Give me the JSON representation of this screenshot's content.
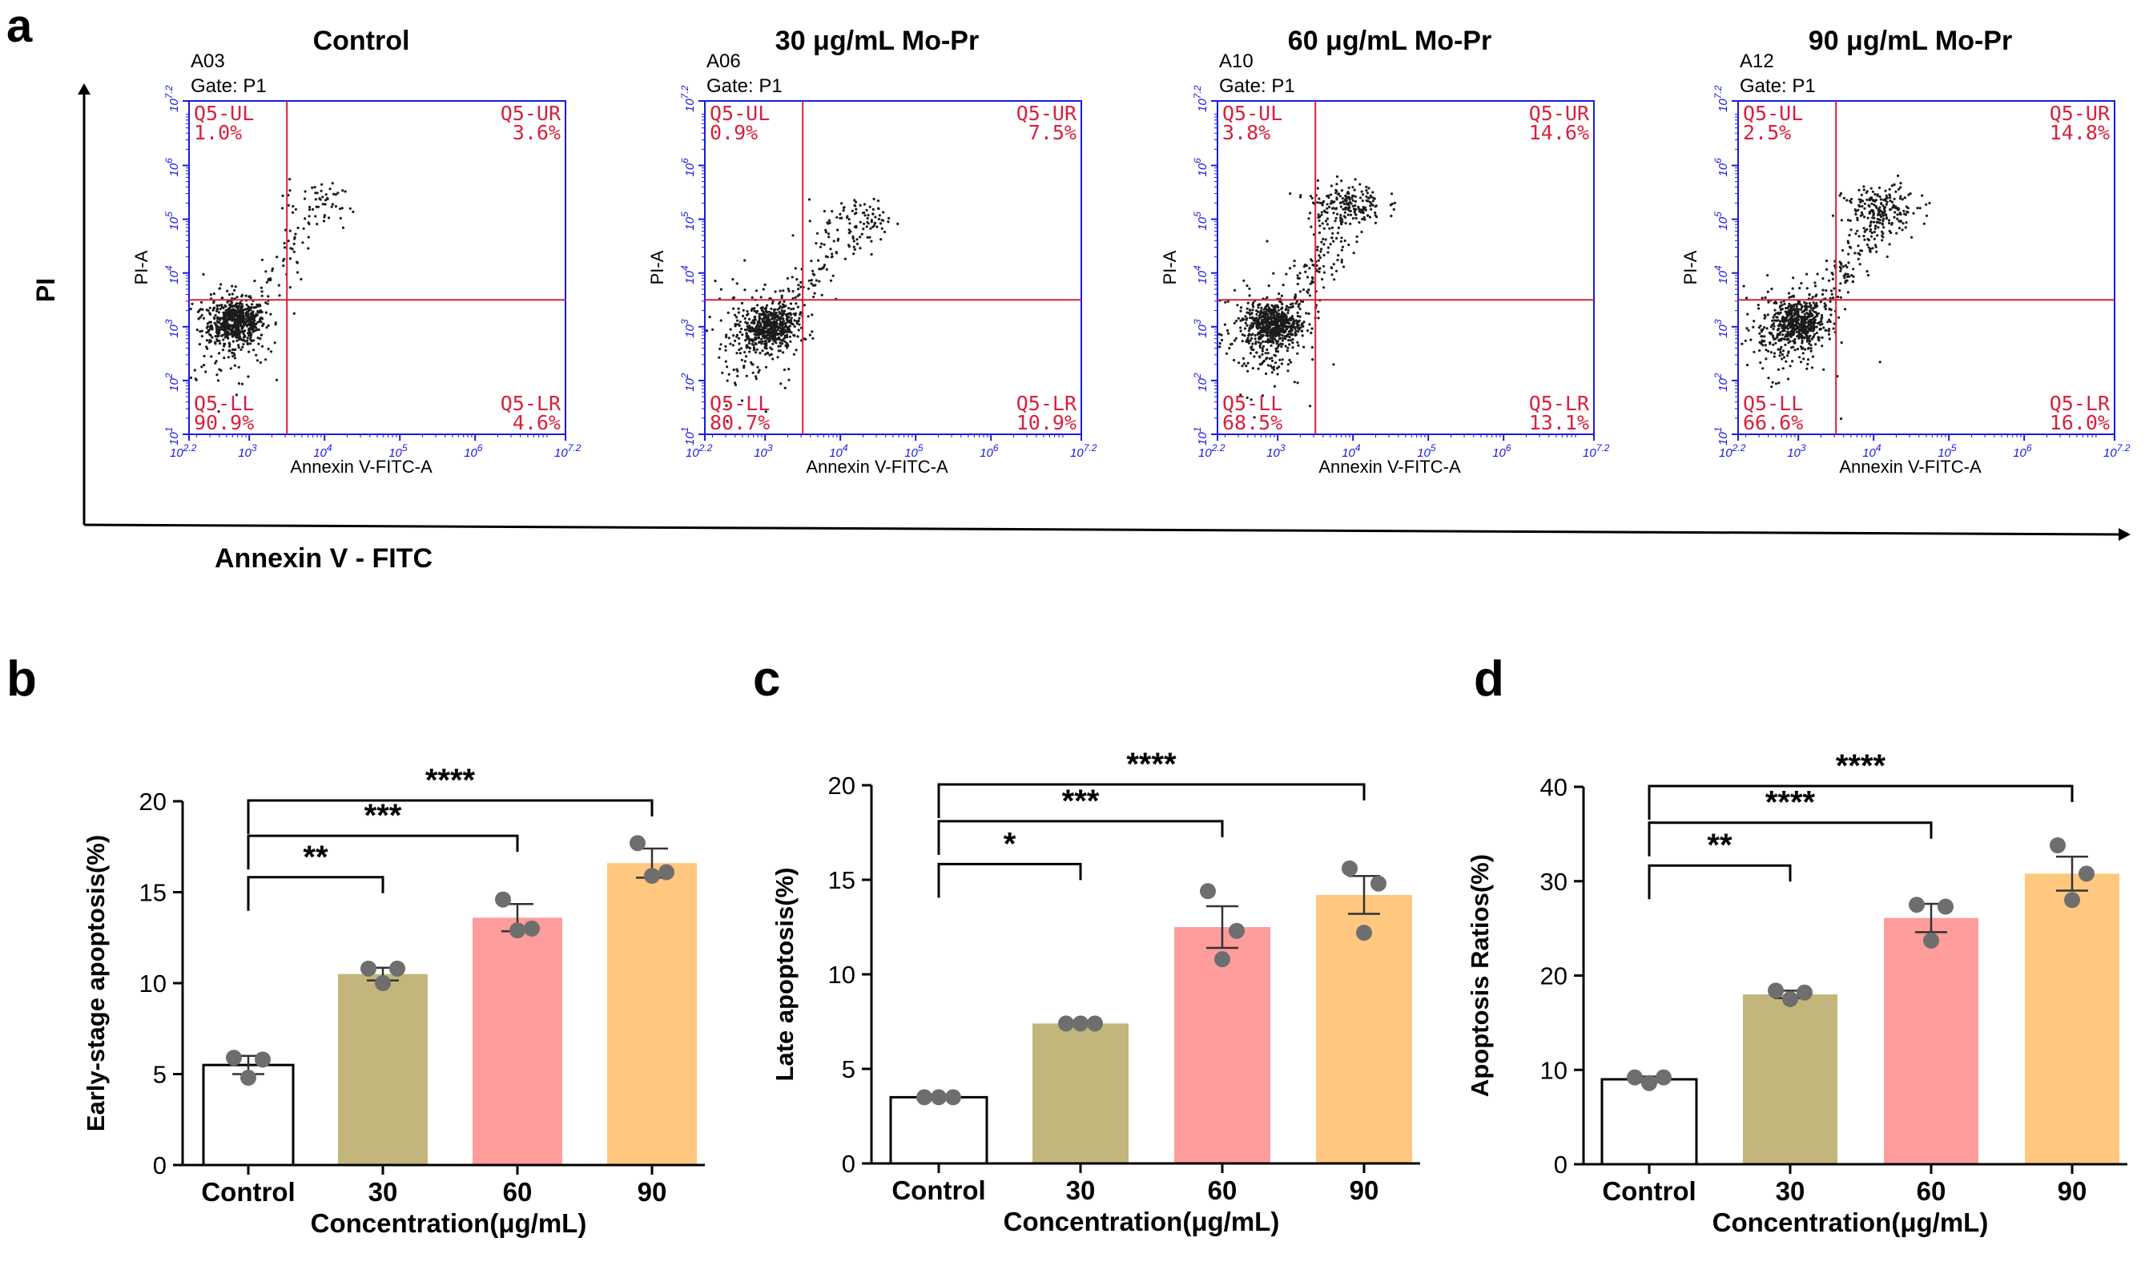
{
  "panel_labels": [
    "a",
    "b",
    "c",
    "d"
  ],
  "chart_data": [
    {
      "type": "scatter",
      "panel": "a",
      "shared_xlabel": "Annexin V - FITC",
      "shared_ylabel": "PI",
      "plots": [
        {
          "title": "Control",
          "sample": "A03",
          "gate": "Gate: P1",
          "quadrants": {
            "UL": [
              "Q5-UL",
              "1.0%"
            ],
            "UR": [
              "Q5-UR",
              "3.6%"
            ],
            "LL": [
              "Q5-LL",
              "90.9%"
            ],
            "LR": [
              "Q5-LR",
              "4.6%"
            ]
          },
          "pattern": {
            "cluster": [
              2.85,
              3.1
            ],
            "cluster_n": 520,
            "diag_n": 70,
            "ur_n": 35,
            "ur_center": [
              3.9,
              5.3
            ],
            "ll_spread_n": 170
          }
        },
        {
          "title": "30 μg/mL  Mo-Pr",
          "sample": "A06",
          "gate": "Gate: P1",
          "quadrants": {
            "UL": [
              "Q5-UL",
              "0.9%"
            ],
            "UR": [
              "Q5-UR",
              "7.5%"
            ],
            "LL": [
              "Q5-LL",
              "80.7%"
            ],
            "LR": [
              "Q5-LR",
              "10.9%"
            ]
          },
          "pattern": {
            "cluster": [
              3.05,
              3.0
            ],
            "cluster_n": 500,
            "diag_n": 130,
            "ur_n": 55,
            "ur_center": [
              4.2,
              5.0
            ],
            "ll_spread_n": 140
          }
        },
        {
          "title": "60 μg/mL  Mo-Pr",
          "sample": "A10",
          "gate": "Gate: P1",
          "quadrants": {
            "UL": [
              "Q5-UL",
              "3.8%"
            ],
            "UR": [
              "Q5-UR",
              "14.6%"
            ],
            "LL": [
              "Q5-LL",
              "68.5%"
            ],
            "LR": [
              "Q5-LR",
              "13.1%"
            ]
          },
          "pattern": {
            "cluster": [
              2.95,
              3.05
            ],
            "cluster_n": 480,
            "diag_n": 160,
            "ur_n": 150,
            "ur_center": [
              3.9,
              5.3
            ],
            "ll_spread_n": 200
          }
        },
        {
          "title": "90 μg/mL Mo-Pr",
          "sample": "A12",
          "gate": "Gate: P1",
          "quadrants": {
            "UL": [
              "Q5-UL",
              "2.5%"
            ],
            "UR": [
              "Q5-UR",
              "14.8%"
            ],
            "LL": [
              "Q5-LL",
              "66.6%"
            ],
            "LR": [
              "Q5-LR",
              "16.0%"
            ]
          },
          "pattern": {
            "cluster": [
              3.0,
              3.05
            ],
            "cluster_n": 480,
            "diag_n": 180,
            "ur_n": 150,
            "ur_center": [
              4.1,
              5.2
            ],
            "ll_spread_n": 150
          }
        }
      ],
      "axis": {
        "xlabel": "Annexin V-FITC-A",
        "ylabel": "PI-A",
        "x_ticks": [
          "10^2.2",
          "10^3",
          "10^4",
          "10^5",
          "10^6",
          "10^7.2"
        ],
        "y_ticks": [
          "10^1",
          "10^2",
          "10^3",
          "10^4",
          "10^5",
          "10^6",
          "10^7.2"
        ],
        "xlim": [
          2.2,
          7.2
        ],
        "ylim": [
          1,
          7.2
        ],
        "gate_x": 3.5,
        "gate_y": 3.5
      }
    },
    {
      "type": "bar",
      "panel": "b",
      "categories": [
        "Control",
        "30",
        "60",
        "90"
      ],
      "values": [
        5.5,
        10.5,
        13.6,
        16.6
      ],
      "sem": [
        0.5,
        0.35,
        0.75,
        0.8
      ],
      "points": [
        [
          5.9,
          5.8,
          4.8
        ],
        [
          10.8,
          10.8,
          10.0
        ],
        [
          14.6,
          13.0,
          12.9
        ],
        [
          17.7,
          16.1,
          15.9
        ]
      ],
      "colors": [
        "#ffffff",
        "#c3b67c",
        "#ff9c9c",
        "#ffc77f"
      ],
      "ylabel": "Early-stage apoptosis(%)",
      "xlabel": "Concentration(μg/mL)",
      "ylim": [
        0,
        20
      ],
      "yticks": [
        0,
        5,
        10,
        15,
        20
      ],
      "significance": [
        {
          "pair": [
            0,
            1
          ],
          "label": "**"
        },
        {
          "pair": [
            0,
            2
          ],
          "label": "***"
        },
        {
          "pair": [
            0,
            3
          ],
          "label": "****"
        }
      ]
    },
    {
      "type": "bar",
      "panel": "c",
      "categories": [
        "Control",
        "30",
        "60",
        "90"
      ],
      "values": [
        3.5,
        7.4,
        12.5,
        14.2
      ],
      "sem": [
        0.05,
        0.05,
        1.1,
        1.0
      ],
      "points": [
        [
          3.5,
          3.5,
          3.5
        ],
        [
          7.4,
          7.4,
          7.4
        ],
        [
          14.4,
          12.3,
          10.8
        ],
        [
          15.6,
          14.8,
          12.2
        ]
      ],
      "colors": [
        "#ffffff",
        "#c3b67c",
        "#ff9c9c",
        "#ffc77f"
      ],
      "ylabel": "Late apoptosis(%)",
      "xlabel": "Concentration(μg/mL)",
      "ylim": [
        0,
        20
      ],
      "yticks": [
        0,
        5,
        10,
        15,
        20
      ],
      "significance": [
        {
          "pair": [
            0,
            1
          ],
          "label": "*"
        },
        {
          "pair": [
            0,
            2
          ],
          "label": "***"
        },
        {
          "pair": [
            0,
            3
          ],
          "label": "****"
        }
      ]
    },
    {
      "type": "bar",
      "panel": "d",
      "categories": [
        "Control",
        "30",
        "60",
        "90"
      ],
      "values": [
        9.0,
        18.0,
        26.1,
        30.8
      ],
      "sem": [
        0.3,
        0.4,
        1.5,
        1.8
      ],
      "points": [
        [
          9.2,
          9.2,
          8.6
        ],
        [
          18.4,
          18.2,
          17.5
        ],
        [
          27.5,
          27.3,
          23.7
        ],
        [
          33.8,
          30.8,
          28.0
        ]
      ],
      "colors": [
        "#ffffff",
        "#c3b67c",
        "#ff9c9c",
        "#ffc77f"
      ],
      "ylabel": "Apoptosis Ratios(%)",
      "xlabel": "Concentration(μg/mL)",
      "ylim": [
        0,
        40
      ],
      "yticks": [
        0,
        10,
        20,
        30,
        40
      ],
      "significance": [
        {
          "pair": [
            0,
            1
          ],
          "label": "**"
        },
        {
          "pair": [
            0,
            2
          ],
          "label": "****"
        },
        {
          "pair": [
            0,
            3
          ],
          "label": "****"
        }
      ]
    }
  ]
}
